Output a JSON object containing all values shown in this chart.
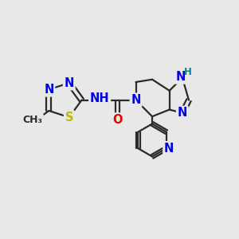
{
  "bg_color": "#e8e8e8",
  "bond_color": "#2a2a2a",
  "atom_colors": {
    "N": "#0000ee",
    "O": "#ee0000",
    "S": "#bbbb00",
    "NH": "#008888",
    "C": "#2a2a2a"
  },
  "lw": 1.6,
  "dbo": 0.055,
  "fs": 10.5,
  "fsH": 8.5,
  "xlim": [
    -0.5,
    5.0
  ],
  "ylim": [
    0.0,
    4.2
  ]
}
